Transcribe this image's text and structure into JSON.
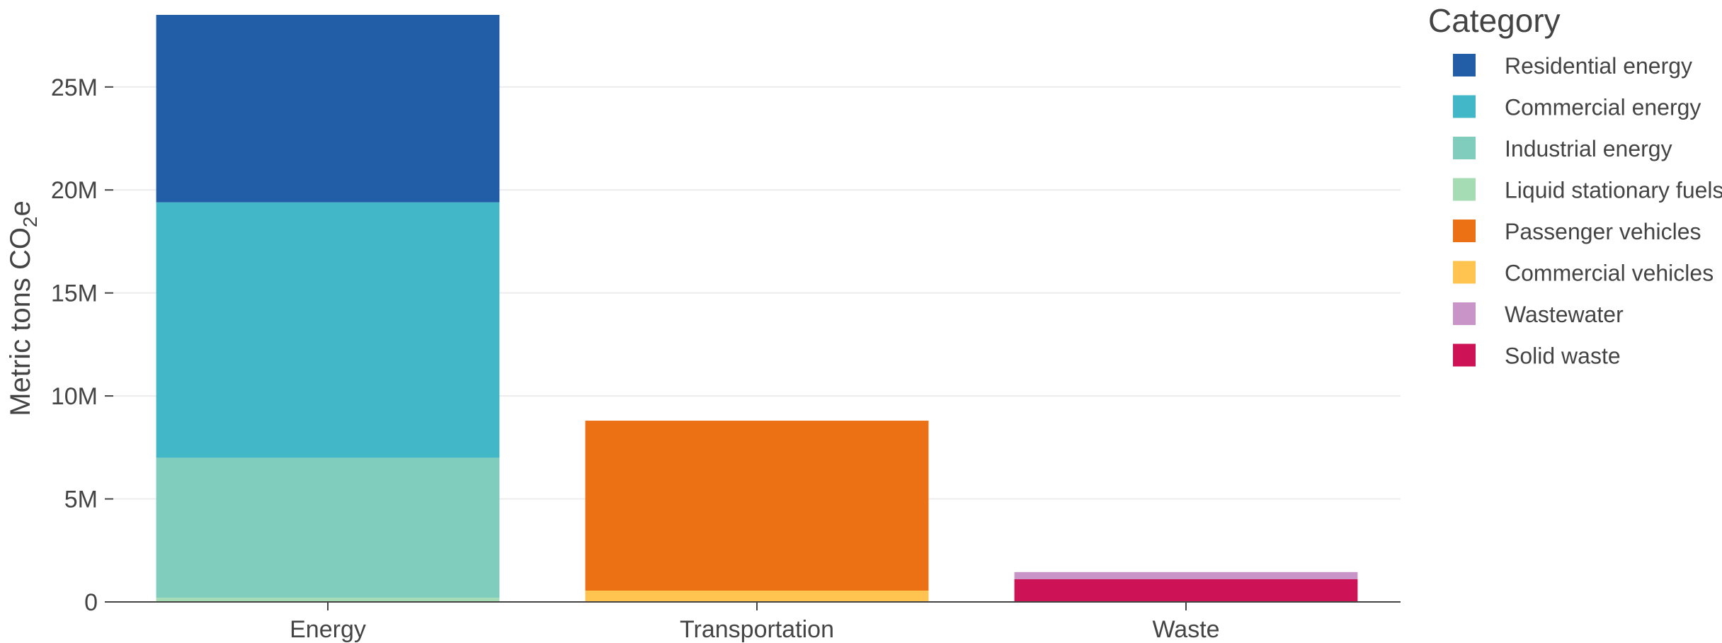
{
  "chart_data": {
    "type": "bar",
    "stacked": true,
    "categories": [
      "Energy",
      "Transportation",
      "Waste"
    ],
    "ylabel": "Metric tons CO",
    "ylabel_subscript": "2",
    "ylabel_suffix": "e",
    "ylim": [
      0,
      28500000
    ],
    "yticks": [
      0,
      5000000,
      10000000,
      15000000,
      20000000,
      25000000
    ],
    "ytick_labels": [
      "0",
      "5M",
      "10M",
      "15M",
      "20M",
      "25M"
    ],
    "grid": true,
    "legend": {
      "title": "Category",
      "placement": "right"
    },
    "series": [
      {
        "name": "Liquid stationary fuels",
        "color": "#a6dcb3",
        "values": [
          200000,
          0,
          0
        ]
      },
      {
        "name": "Industrial energy",
        "color": "#80cdbd",
        "values": [
          6800000,
          0,
          0
        ]
      },
      {
        "name": "Commercial energy",
        "color": "#42b7c8",
        "values": [
          12400000,
          0,
          0
        ]
      },
      {
        "name": "Residential energy",
        "color": "#225ea8",
        "values": [
          9100000,
          0,
          0
        ]
      },
      {
        "name": "Commercial vehicles",
        "color": "#fec44f",
        "values": [
          0,
          550000,
          0
        ]
      },
      {
        "name": "Passenger vehicles",
        "color": "#ec7014",
        "values": [
          0,
          8250000,
          0
        ]
      },
      {
        "name": "Solid waste",
        "color": "#ce1256",
        "values": [
          0,
          0,
          1100000
        ]
      },
      {
        "name": "Wastewater",
        "color": "#c994c7",
        "values": [
          0,
          0,
          350000
        ]
      }
    ],
    "legend_order": [
      "Residential energy",
      "Commercial energy",
      "Industrial energy",
      "Liquid stationary fuels",
      "Passenger vehicles",
      "Commercial vehicles",
      "Wastewater",
      "Solid waste"
    ]
  }
}
